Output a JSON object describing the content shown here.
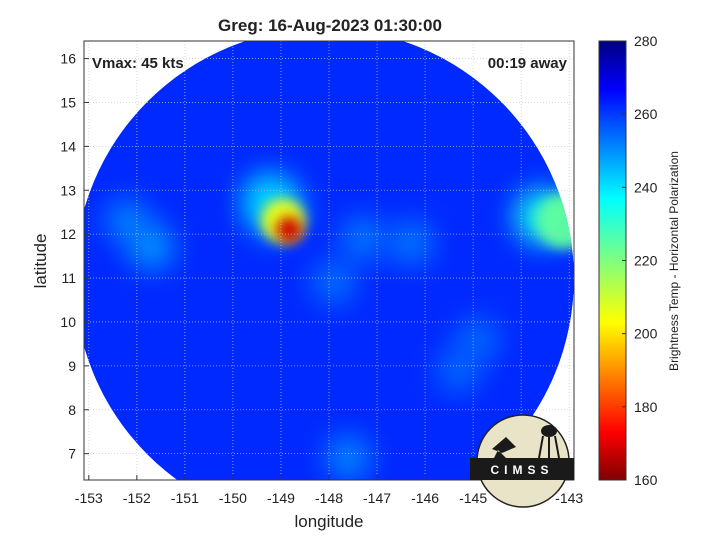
{
  "chart_data": {
    "type": "heatmap",
    "title": "Greg: 16-Aug-2023 01:30:00",
    "xlabel": "longitude",
    "ylabel": "latitude",
    "xlim": [
      -153.1,
      -142.9
    ],
    "ylim": [
      6.4,
      16.4
    ],
    "x_ticks": [
      -153,
      -152,
      -151,
      -150,
      -149,
      -148,
      -147,
      -146,
      -145,
      -144,
      -143
    ],
    "y_ticks": [
      7,
      8,
      9,
      10,
      11,
      12,
      13,
      14,
      15,
      16
    ],
    "grid": true,
    "annotations": {
      "top_left": "Vmax: 45 kts",
      "top_right": "00:19 away"
    },
    "colorbar": {
      "label": "Brightness Temp - Horizontal Polarization",
      "min": 160,
      "max": 280,
      "ticks": [
        160,
        180,
        200,
        220,
        240,
        260,
        280
      ],
      "colormap": "jet"
    },
    "swath": {
      "center_lon": -148.1,
      "center_lat": 11.0,
      "radius_deg": 5.2,
      "background_value": 262
    },
    "features": [
      {
        "lon": -148.83,
        "lat": 12.1,
        "value": 168,
        "note": "storm core"
      },
      {
        "lon": -148.95,
        "lat": 12.3,
        "value": 205
      },
      {
        "lon": -149.15,
        "lat": 12.6,
        "value": 240
      },
      {
        "lon": -149.3,
        "lat": 12.9,
        "value": 249
      },
      {
        "lon": -151.7,
        "lat": 11.7,
        "value": 248
      },
      {
        "lon": -152.2,
        "lat": 12.3,
        "value": 251
      },
      {
        "lon": -143.55,
        "lat": 12.4,
        "value": 234
      },
      {
        "lon": -143.1,
        "lat": 12.3,
        "value": 224
      },
      {
        "lon": -147.9,
        "lat": 10.9,
        "value": 253
      },
      {
        "lon": -147.3,
        "lat": 11.9,
        "value": 252
      },
      {
        "lon": -146.3,
        "lat": 11.8,
        "value": 252
      },
      {
        "lon": -144.9,
        "lat": 9.6,
        "value": 254
      },
      {
        "lon": -145.3,
        "lat": 8.9,
        "value": 254
      },
      {
        "lon": -147.6,
        "lat": 6.9,
        "value": 250
      }
    ],
    "logo_text": "CIMSS"
  }
}
